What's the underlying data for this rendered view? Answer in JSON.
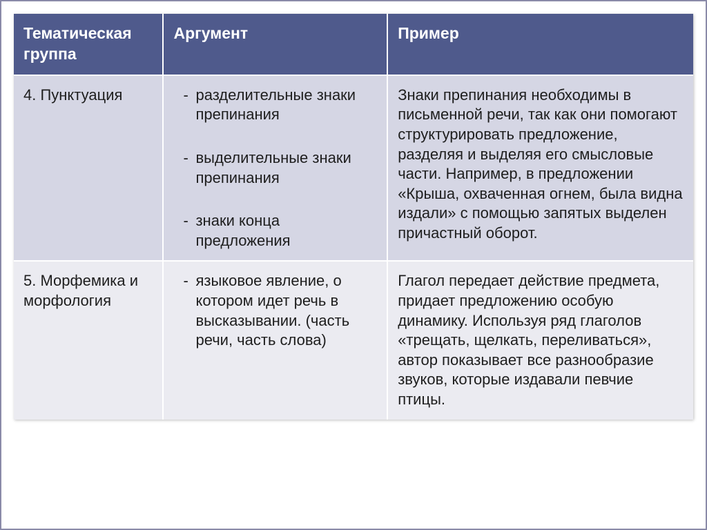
{
  "table": {
    "header": {
      "col1": "Тематическая группа",
      "col2": "Аргумент",
      "col3": "Пример"
    },
    "rows": [
      {
        "topic": "4. Пунктуация",
        "args": [
          "разделительные знаки препинания",
          "выделительные знаки препинания",
          "знаки конца предложения"
        ],
        "example": "Знаки препинания необходимы в письменной речи, так как они помогают структурировать предложение, разделяя и выделяя его смысловые части. Например, в предложении «Крыша, охваченная огнем, была видна издали» с помощью запятых выделен причастный оборот."
      },
      {
        "topic": "5. Морфемика и морфология",
        "args": [
          "языковое явление, о котором идет речь в высказывании. (часть речи, часть слова)"
        ],
        "example": "Глагол передает действие предмета, придает предложению особую динамику. Используя ряд глаголов «трещать, щелкать, переливаться»,  автор показывает все разнообразие звуков, которые издавали певчие птицы."
      }
    ]
  },
  "colors": {
    "header_bg": "#4f5a8c",
    "row_a_bg": "#d5d6e4",
    "row_b_bg": "#ebebf1",
    "border": "#ffffff",
    "frame_border": "#8a8aa8",
    "text": "#1e1e1e"
  },
  "typography": {
    "font_family": "Arial",
    "body_fontsize_pt": 16,
    "header_fontsize_pt": 17,
    "line_height": 1.3
  },
  "layout": {
    "col_widths_pct": [
      22,
      33,
      45
    ],
    "table_shadow": true
  }
}
